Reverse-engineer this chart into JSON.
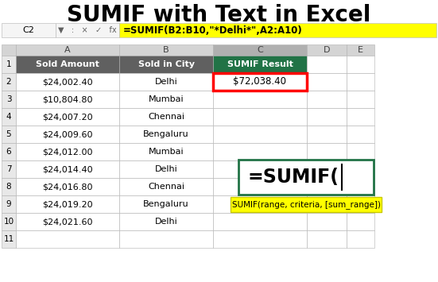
{
  "title": "SUMIF with Text in Excel",
  "title_fontsize": 20,
  "col_a_header": "Sold Amount",
  "col_b_header": "Sold in City",
  "col_c_header": "SUMIF Result",
  "col_a_data": [
    "$24,002.40",
    "$10,804.80",
    "$24,007.20",
    "$24,009.60",
    "$24,012.00",
    "$24,014.40",
    "$24,016.80",
    "$24,019.20",
    "$24,021.60"
  ],
  "col_b_data": [
    "Delhi",
    "Mumbai",
    "Chennai",
    "Bengaluru",
    "Mumbai",
    "Delhi",
    "Chennai",
    "Bengaluru",
    "Delhi"
  ],
  "col_c_result": "$72,038.40",
  "formula_bar_text": "=SUMIF(B2:B10,\"*Delhi*\",A2:A10)",
  "formula_bar_cell": "C2",
  "sumif_display": "=SUMIF(",
  "sumif_tooltip": "SUMIF(range, criteria, [sum_range])",
  "header_bg": "#606060",
  "header_text": "#ffffff",
  "result_header_bg": "#217346",
  "result_header_text": "#ffffff",
  "formula_bar_bg": "#ffff00",
  "result_border_color": "#ff0000",
  "sumif_box_border": "#217346",
  "tooltip_bg": "#ffff00",
  "tooltip_border": "#c8c800",
  "bg_color": "#ffffff",
  "col_header_bg": "#d4d4d4",
  "col_header_selected": "#b0b0b0",
  "row_num_bg": "#e8e8e8",
  "corner_bg": "#d4d4d4",
  "grid_color": "#b0b0b0"
}
